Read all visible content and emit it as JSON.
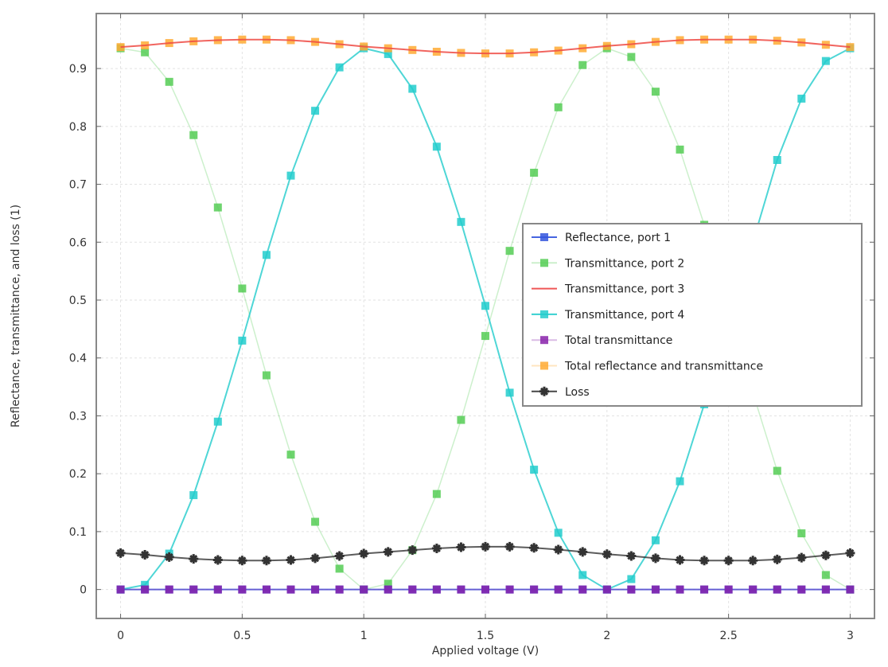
{
  "chart_data": {
    "type": "line",
    "title": "",
    "xlabel": "Applied voltage (V)",
    "ylabel": "Reflectance, transmittance, and loss (1)",
    "xlim": [
      -0.1,
      3.1
    ],
    "ylim": [
      -0.05,
      0.995
    ],
    "xticks": [
      "0",
      "0.5",
      "1",
      "1.5",
      "2",
      "2.5",
      "3"
    ],
    "yticks": [
      "0",
      "0.1",
      "0.2",
      "0.3",
      "0.4",
      "0.5",
      "0.6",
      "0.7",
      "0.8",
      "0.9"
    ],
    "grid": true,
    "legend_position": "center-right",
    "x": [
      0,
      0.1,
      0.2,
      0.3,
      0.4,
      0.5,
      0.6,
      0.7,
      0.8,
      0.9,
      1.0,
      1.1,
      1.2,
      1.3,
      1.4,
      1.5,
      1.6,
      1.7,
      1.8,
      1.9,
      2.0,
      2.1,
      2.2,
      2.3,
      2.4,
      2.5,
      2.6,
      2.7,
      2.8,
      2.9,
      3.0
    ],
    "series": [
      {
        "name": "Reflectance, port 1",
        "color": "#3355dd",
        "marker": "square",
        "line": true,
        "values": [
          0,
          0,
          0,
          0,
          0,
          0,
          0,
          0,
          0,
          0,
          0,
          0,
          0,
          0,
          0,
          0,
          0,
          0,
          0,
          0,
          0,
          0,
          0,
          0,
          0,
          0,
          0,
          0,
          0,
          0,
          0
        ]
      },
      {
        "name": "Transmittance, port 2",
        "color": "#55cc55",
        "marker": "square",
        "line": false,
        "values": [
          0.935,
          0.928,
          0.877,
          0.785,
          0.66,
          0.52,
          0.37,
          0.233,
          0.117,
          0.036,
          0.0,
          0.01,
          0.068,
          0.165,
          0.293,
          0.438,
          0.585,
          0.72,
          0.833,
          0.906,
          0.935,
          0.92,
          0.86,
          0.76,
          0.63,
          0.49,
          0.34,
          0.205,
          0.097,
          0.025,
          0.0
        ]
      },
      {
        "name": "Transmittance, port 3",
        "color": "#ee4444",
        "marker": "none",
        "line": true,
        "values": [
          0.937,
          0.94,
          0.944,
          0.947,
          0.949,
          0.95,
          0.95,
          0.949,
          0.946,
          0.942,
          0.938,
          0.935,
          0.932,
          0.929,
          0.927,
          0.926,
          0.926,
          0.928,
          0.931,
          0.935,
          0.939,
          0.942,
          0.946,
          0.949,
          0.95,
          0.95,
          0.95,
          0.948,
          0.945,
          0.941,
          0.937
        ]
      },
      {
        "name": "Transmittance, port 4",
        "color": "#22cccc",
        "marker": "square",
        "line": true,
        "values": [
          0,
          0.008,
          0.062,
          0.163,
          0.29,
          0.43,
          0.578,
          0.715,
          0.827,
          0.902,
          0.935,
          0.925,
          0.865,
          0.765,
          0.635,
          0.49,
          0.34,
          0.207,
          0.098,
          0.025,
          0.0,
          0.018,
          0.085,
          0.187,
          0.32,
          0.46,
          0.6,
          0.742,
          0.848,
          0.913,
          0.935
        ]
      },
      {
        "name": "Total transmittance",
        "color": "#8822aa",
        "marker": "square",
        "line": false,
        "values": [
          0,
          0,
          0,
          0,
          0,
          0,
          0,
          0,
          0,
          0,
          0,
          0,
          0,
          0,
          0,
          0,
          0,
          0,
          0,
          0,
          0,
          0,
          0,
          0,
          0,
          0,
          0,
          0,
          0,
          0,
          0
        ]
      },
      {
        "name": "Total reflectance and transmittance",
        "color": "#ffaa33",
        "marker": "square",
        "line": false,
        "values": [
          0.937,
          0.94,
          0.944,
          0.947,
          0.949,
          0.95,
          0.95,
          0.949,
          0.946,
          0.942,
          0.938,
          0.935,
          0.932,
          0.929,
          0.927,
          0.926,
          0.926,
          0.928,
          0.931,
          0.935,
          0.939,
          0.942,
          0.946,
          0.949,
          0.95,
          0.95,
          0.95,
          0.948,
          0.945,
          0.941,
          0.937
        ]
      },
      {
        "name": "Loss",
        "color": "#333333",
        "marker": "star",
        "line": true,
        "values": [
          0.063,
          0.06,
          0.056,
          0.053,
          0.051,
          0.05,
          0.05,
          0.051,
          0.054,
          0.058,
          0.062,
          0.065,
          0.068,
          0.071,
          0.073,
          0.074,
          0.074,
          0.072,
          0.069,
          0.065,
          0.061,
          0.058,
          0.054,
          0.051,
          0.05,
          0.05,
          0.05,
          0.052,
          0.055,
          0.059,
          0.063
        ]
      }
    ]
  }
}
